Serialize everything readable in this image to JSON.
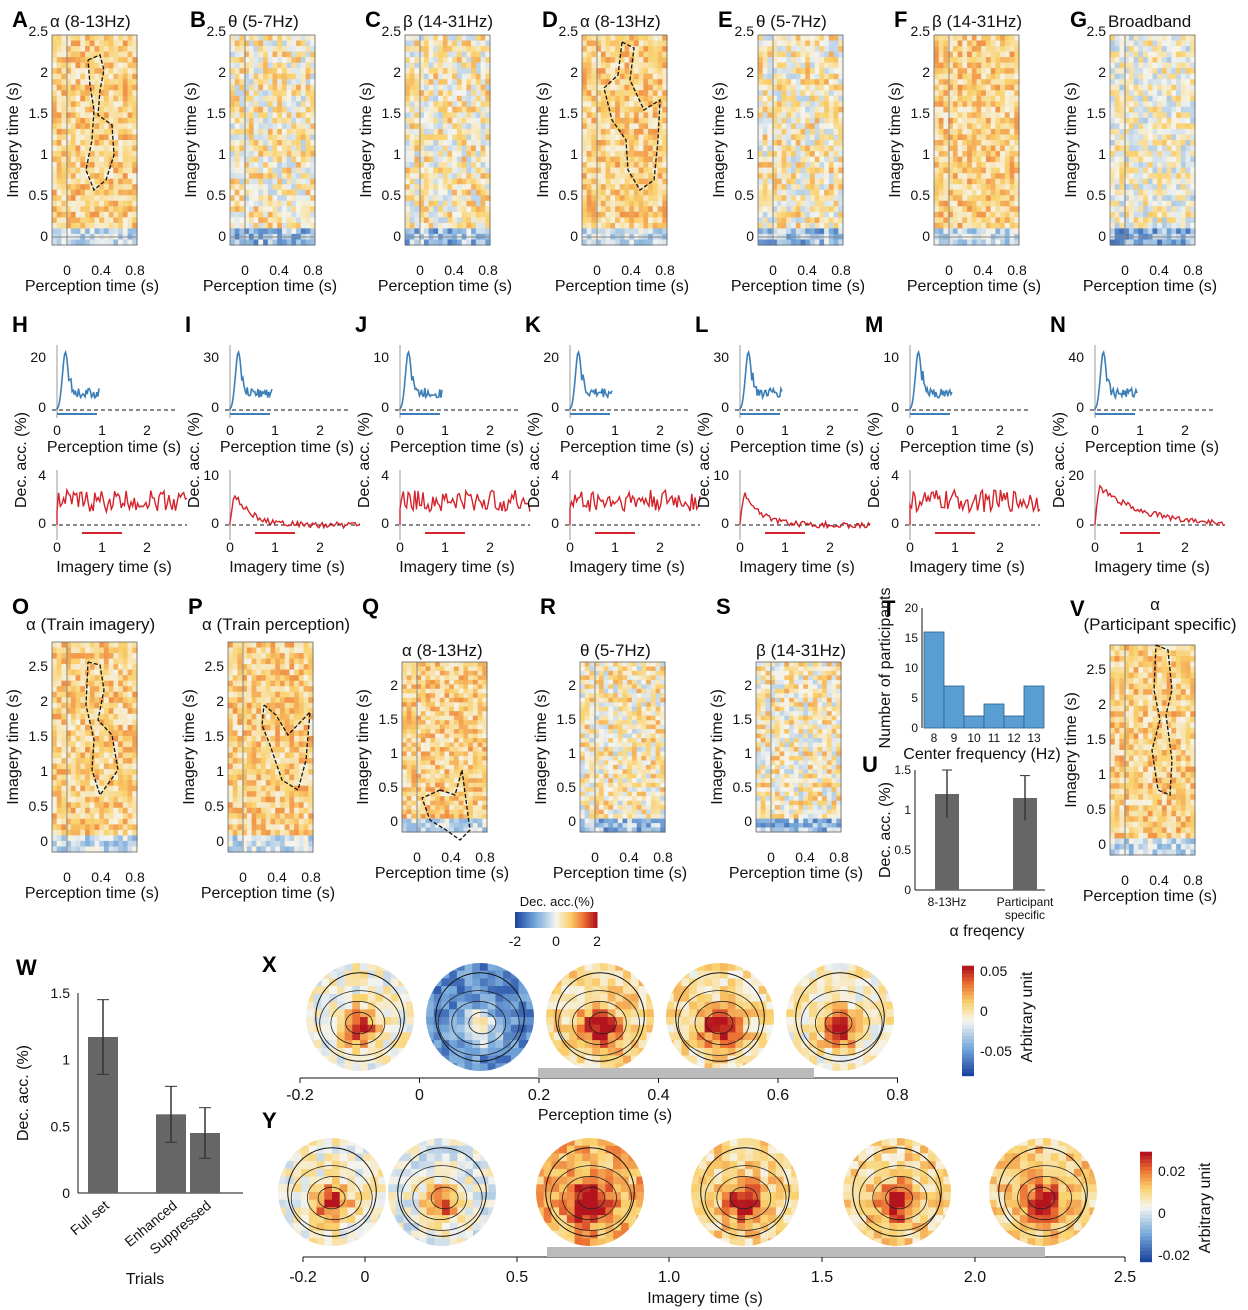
{
  "figure": {
    "panel_labels": [
      "A",
      "B",
      "C",
      "D",
      "E",
      "F",
      "G",
      "H",
      "I",
      "J",
      "K",
      "L",
      "M",
      "N",
      "O",
      "P",
      "Q",
      "R",
      "S",
      "T",
      "U",
      "V",
      "W",
      "X",
      "Y"
    ],
    "top_row": [
      {
        "label": "A",
        "title": "α (8-13Hz)",
        "contour": true,
        "cmap": "warm"
      },
      {
        "label": "B",
        "title": "θ (5-7Hz)",
        "contour": false,
        "cmap": "mixed"
      },
      {
        "label": "C",
        "title": "β (14-31Hz)",
        "contour": false,
        "cmap": "mixed"
      },
      {
        "label": "D",
        "title": "α (8-13Hz)",
        "contour": true,
        "cmap": "warm"
      },
      {
        "label": "E",
        "title": "θ (5-7Hz)",
        "contour": false,
        "cmap": "mixed"
      },
      {
        "label": "F",
        "title": "β (14-31Hz)",
        "contour": false,
        "cmap": "warm"
      },
      {
        "label": "G",
        "title": "Broadband",
        "contour": false,
        "cmap": "cool"
      }
    ],
    "tg_axes": {
      "ylabel": "Imagery time (s)",
      "xlabel": "Perception time (s)",
      "yticks": [
        "0",
        "0.5",
        "1",
        "1.5",
        "2",
        "2.5"
      ],
      "xticks": [
        "0",
        "0.4",
        "0.8"
      ]
    },
    "row2_axes": {
      "ylabel": "Dec. acc. (%)",
      "xlabel_top": "Perception time (s)",
      "xlabel_bottom": "Imagery time (s)",
      "xticks": [
        "0",
        "1",
        "2"
      ]
    },
    "row3": [
      {
        "label": "O",
        "title": "α (Train imagery)"
      },
      {
        "label": "P",
        "title": "α (Train perception)"
      },
      {
        "label": "Q",
        "title": "α (8-13Hz)"
      },
      {
        "label": "R",
        "title": "θ (5-7Hz)"
      },
      {
        "label": "S",
        "title": "β (14-31Hz)"
      },
      {
        "label": "V",
        "title_line1": "α",
        "title_line2": "(Participant specific)"
      }
    ],
    "row3_short_yticks": [
      "0",
      "0.5",
      "1",
      "1.5",
      "2"
    ],
    "colorbar": {
      "title": "Dec. acc.(%)",
      "ticks": [
        "-2",
        "0",
        "2"
      ]
    },
    "T": {
      "xlabel": "Center frequency (Hz)",
      "ylabel": "Number of participants",
      "yticks": [
        "0",
        "5",
        "10",
        "15",
        "20"
      ]
    },
    "U": {
      "ylabel": "Dec. acc. (%)",
      "xlabel": "α freqency",
      "yticks": [
        "0",
        "0.5",
        "1",
        "1.5"
      ],
      "cat1": "8-13Hz",
      "cat2a": "Participant",
      "cat2b": "specific"
    },
    "W": {
      "ylabel": "Dec. acc. (%)",
      "xlabel": "Trials",
      "yticks": [
        "0",
        "0.5",
        "1",
        "1.5"
      ]
    },
    "X": {
      "xlabel": "Perception time (s)",
      "xticks": [
        "-0.2",
        "0",
        "0.2",
        "0.4",
        "0.6",
        "0.8"
      ],
      "cbar_label": "Arbitrary unit",
      "cbar_ticks": [
        "0.05",
        "0",
        "-0.05"
      ]
    },
    "Y": {
      "xlabel": "Imagery time (s)",
      "xticks": [
        "-0.2",
        "0",
        "0.5",
        "1.0",
        "1.5",
        "2.0",
        "2.5"
      ],
      "cbar_label": "Arbitrary unit",
      "cbar_ticks": [
        "0.02",
        "0",
        "-0.02"
      ]
    }
  },
  "chart_data": [
    {
      "type": "bar",
      "panel": "T",
      "categories": [
        "8",
        "9",
        "10",
        "11",
        "12",
        "13"
      ],
      "values": [
        16,
        7,
        2,
        4,
        2,
        7
      ],
      "xlabel": "Center frequency (Hz)",
      "ylabel": "Number of participants",
      "ylim": [
        0,
        20
      ]
    },
    {
      "type": "bar",
      "panel": "U",
      "categories": [
        "8-13Hz",
        "Participant specific"
      ],
      "values": [
        1.2,
        1.15
      ],
      "errors": [
        0.3,
        0.28
      ],
      "xlabel": "α freqency",
      "ylabel": "Dec. acc. (%)",
      "ylim": [
        0,
        1.5
      ]
    },
    {
      "type": "bar",
      "panel": "W",
      "categories": [
        "Full set",
        "Enhanced",
        "Suppressed"
      ],
      "values": [
        1.17,
        0.59,
        0.45
      ],
      "errors": [
        0.28,
        0.21,
        0.19
      ],
      "xlabel": "Trials",
      "ylabel": "Dec. acc. (%)",
      "ylim": [
        0,
        1.5
      ]
    }
  ]
}
